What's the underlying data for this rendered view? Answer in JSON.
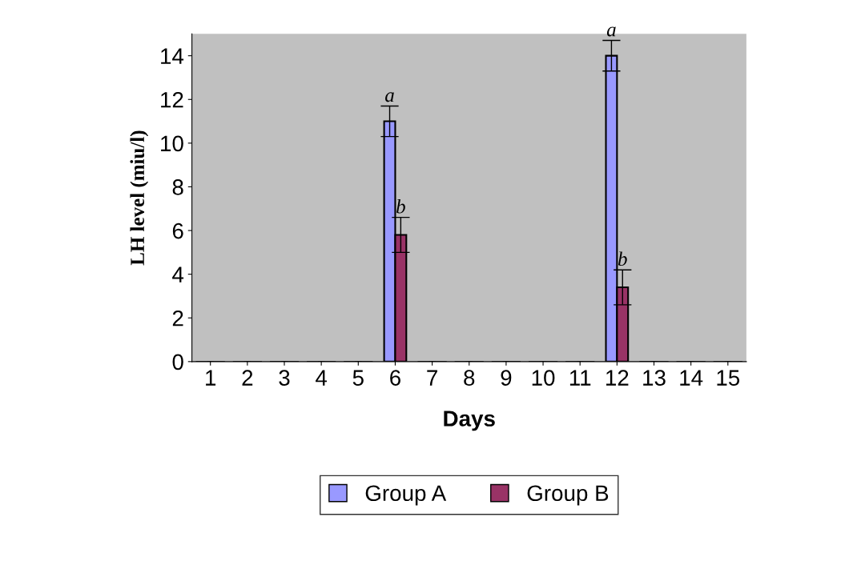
{
  "chart_data": {
    "type": "bar",
    "xlabel": "Days",
    "ylabel": "LH level (miu/l)",
    "categories": [
      "1",
      "2",
      "3",
      "4",
      "5",
      "6",
      "7",
      "8",
      "9",
      "10",
      "11",
      "12",
      "13",
      "14",
      "15"
    ],
    "series": [
      {
        "name": "Group A",
        "color": "#9999ff",
        "values": [
          0,
          0,
          0,
          0,
          0,
          11.0,
          0,
          0,
          0,
          0,
          0,
          14.0,
          0,
          0,
          0
        ],
        "errors": [
          null,
          null,
          null,
          null,
          null,
          0.7,
          null,
          null,
          null,
          null,
          null,
          0.7,
          null,
          null,
          null
        ]
      },
      {
        "name": "Group B",
        "color": "#993366",
        "values": [
          0,
          0,
          0,
          0,
          0,
          5.8,
          0,
          0,
          0,
          0,
          0,
          3.4,
          0,
          0,
          0
        ],
        "errors": [
          null,
          null,
          null,
          null,
          null,
          0.8,
          null,
          null,
          null,
          null,
          null,
          0.8,
          null,
          null,
          null
        ]
      }
    ],
    "ylim": [
      0,
      15
    ],
    "yticks": [
      0,
      2,
      4,
      6,
      8,
      10,
      12,
      14
    ],
    "grid": false,
    "legend": "bottom",
    "annotations": [
      {
        "text": "a",
        "x": "6",
        "y": 11.7
      },
      {
        "text": "b",
        "x": "6",
        "y": 6.6
      },
      {
        "text": "a",
        "x": "12",
        "y": 14.7
      },
      {
        "text": "b",
        "x": "12",
        "y": 4.2
      }
    ]
  }
}
